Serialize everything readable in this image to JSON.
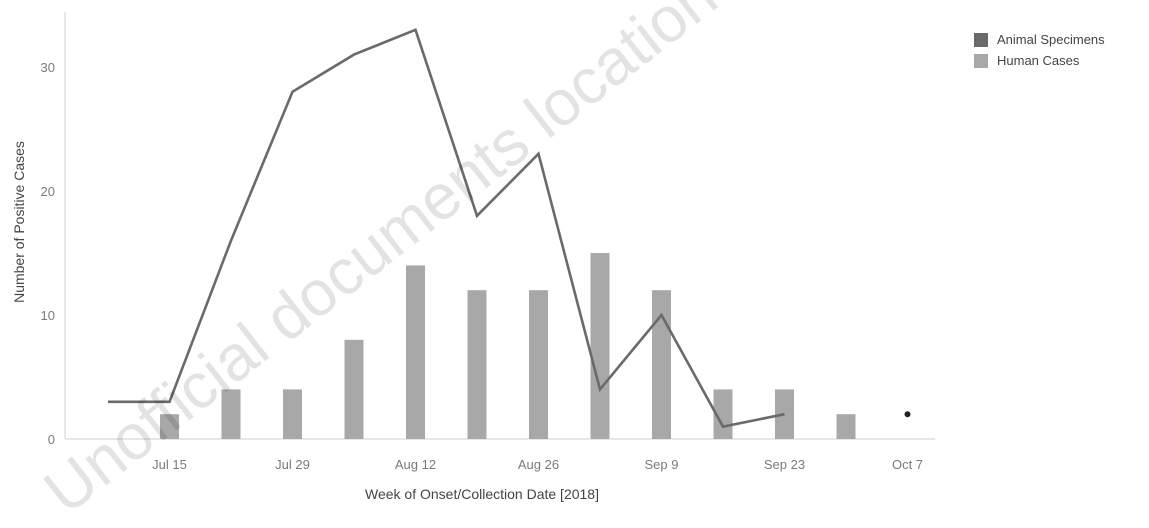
{
  "watermark": "Unofficial documents location",
  "colors": {
    "animal": "#6a6a6a",
    "human": "#a8a8a8",
    "grid": "#e3e3e3",
    "axis": "#cfcfcf"
  },
  "legend": {
    "items": [
      {
        "label": "Animal Specimens",
        "color": "#6a6a6a"
      },
      {
        "label": "Human Cases",
        "color": "#a8a8a8"
      }
    ]
  },
  "chart_data": {
    "type": "bar+line",
    "xlabel": "Week of Onset/Collection Date [2018]",
    "ylabel": "Number of Positive Cases",
    "ylim": [
      0,
      35
    ],
    "yticks": [
      0,
      10,
      20,
      30
    ],
    "x_tick_labels": [
      {
        "week": "Jul 15",
        "label": "Jul 15"
      },
      {
        "week": "Jul 29",
        "label": "Jul 29"
      },
      {
        "week": "Aug 12",
        "label": "Aug 12"
      },
      {
        "week": "Aug 26",
        "label": "Aug 26"
      },
      {
        "week": "Sep 9",
        "label": "Sep 9"
      },
      {
        "week": "Sep 23",
        "label": "Sep 23"
      },
      {
        "week": "Oct 7",
        "label": "Oct 7"
      }
    ],
    "weeks": [
      "Jul 8",
      "Jul 15",
      "Jul 22",
      "Jul 29",
      "Aug 5",
      "Aug 12",
      "Aug 19",
      "Aug 26",
      "Sep 2",
      "Sep 9",
      "Sep 16",
      "Sep 23",
      "Sep 30",
      "Oct 7"
    ],
    "series": [
      {
        "name": "Animal Specimens",
        "kind": "line",
        "color": "#6a6a6a",
        "values": [
          3,
          3,
          16,
          28,
          31,
          33,
          18,
          23,
          4,
          10,
          1,
          2,
          null,
          2
        ]
      },
      {
        "name": "Human Cases",
        "kind": "bar",
        "color": "#a8a8a8",
        "values": [
          null,
          2,
          4,
          4,
          8,
          14,
          12,
          12,
          15,
          12,
          4,
          4,
          2,
          null
        ]
      }
    ],
    "legend_position": "top-right",
    "grid": false
  }
}
